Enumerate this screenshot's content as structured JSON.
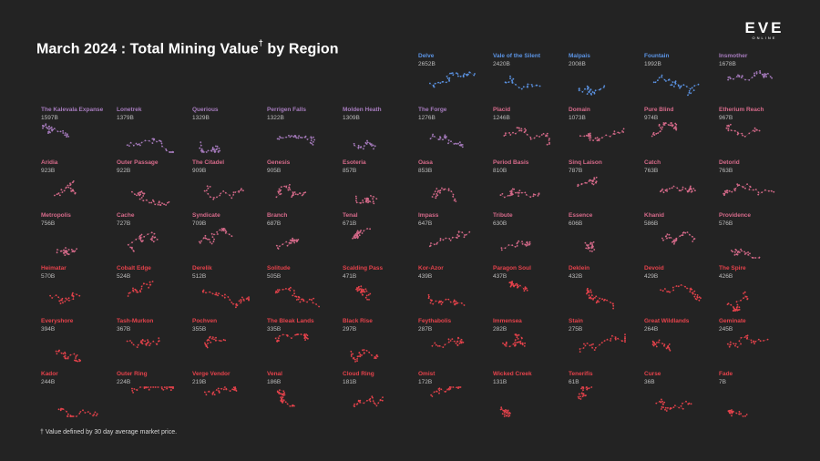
{
  "title": "March 2024 : Total Mining Value",
  "title_mark": "†",
  "title_suffix": "by Region",
  "logo": {
    "main": "EVE",
    "sub": "ONLINE"
  },
  "footnote": "† Value defined by 30 day average market price.",
  "colors": {
    "background": "#232323",
    "tier_blue": "#5b93e3",
    "tier_purple": "#a67bbd",
    "tier_pink": "#d66a8a",
    "tier_red": "#e5424b",
    "value_text": "#bdbdbd"
  },
  "chart_data": {
    "type": "small-multiples",
    "title": "March 2024 : Total Mining Value† by Region",
    "unit": "B",
    "regions": [
      {
        "name": "Delve",
        "value": "2652B",
        "tier": "blue"
      },
      {
        "name": "Vale of the Silent",
        "value": "2420B",
        "tier": "blue"
      },
      {
        "name": "Malpais",
        "value": "2008B",
        "tier": "blue"
      },
      {
        "name": "Fountain",
        "value": "1992B",
        "tier": "blue"
      },
      {
        "name": "Insmother",
        "value": "1678B",
        "tier": "purple"
      },
      {
        "name": "The Kalevala Expanse",
        "value": "1597B",
        "tier": "purple"
      },
      {
        "name": "Lonetrek",
        "value": "1379B",
        "tier": "purple"
      },
      {
        "name": "Querious",
        "value": "1329B",
        "tier": "purple"
      },
      {
        "name": "Perrigen Falls",
        "value": "1322B",
        "tier": "purple"
      },
      {
        "name": "Molden Heath",
        "value": "1309B",
        "tier": "purple"
      },
      {
        "name": "The Forge",
        "value": "1276B",
        "tier": "purple"
      },
      {
        "name": "Placid",
        "value": "1246B",
        "tier": "pink"
      },
      {
        "name": "Domain",
        "value": "1073B",
        "tier": "pink"
      },
      {
        "name": "Pure Blind",
        "value": "974B",
        "tier": "pink"
      },
      {
        "name": "Etherium Reach",
        "value": "967B",
        "tier": "pink"
      },
      {
        "name": "Aridia",
        "value": "923B",
        "tier": "pink"
      },
      {
        "name": "Outer Passage",
        "value": "922B",
        "tier": "pink"
      },
      {
        "name": "The Citadel",
        "value": "909B",
        "tier": "pink"
      },
      {
        "name": "Genesis",
        "value": "905B",
        "tier": "pink"
      },
      {
        "name": "Esoteria",
        "value": "857B",
        "tier": "pink"
      },
      {
        "name": "Oasa",
        "value": "853B",
        "tier": "pink"
      },
      {
        "name": "Period Basis",
        "value": "810B",
        "tier": "pink"
      },
      {
        "name": "Sinq Laison",
        "value": "787B",
        "tier": "pink"
      },
      {
        "name": "Catch",
        "value": "763B",
        "tier": "pink"
      },
      {
        "name": "Detorid",
        "value": "763B",
        "tier": "pink"
      },
      {
        "name": "Metropolis",
        "value": "756B",
        "tier": "pink"
      },
      {
        "name": "Cache",
        "value": "727B",
        "tier": "pink"
      },
      {
        "name": "Syndicate",
        "value": "709B",
        "tier": "pink"
      },
      {
        "name": "Branch",
        "value": "687B",
        "tier": "pink"
      },
      {
        "name": "Tenal",
        "value": "671B",
        "tier": "pink"
      },
      {
        "name": "Impass",
        "value": "647B",
        "tier": "pink"
      },
      {
        "name": "Tribute",
        "value": "630B",
        "tier": "pink"
      },
      {
        "name": "Essence",
        "value": "606B",
        "tier": "pink"
      },
      {
        "name": "Khanid",
        "value": "586B",
        "tier": "pink"
      },
      {
        "name": "Providence",
        "value": "576B",
        "tier": "pink"
      },
      {
        "name": "Heimatar",
        "value": "570B",
        "tier": "red"
      },
      {
        "name": "Cobalt Edge",
        "value": "524B",
        "tier": "red"
      },
      {
        "name": "Derelik",
        "value": "512B",
        "tier": "red"
      },
      {
        "name": "Solitude",
        "value": "505B",
        "tier": "red"
      },
      {
        "name": "Scalding Pass",
        "value": "471B",
        "tier": "red"
      },
      {
        "name": "Kor-Azor",
        "value": "439B",
        "tier": "red"
      },
      {
        "name": "Paragon Soul",
        "value": "437B",
        "tier": "red"
      },
      {
        "name": "Deklein",
        "value": "432B",
        "tier": "red"
      },
      {
        "name": "Devoid",
        "value": "429B",
        "tier": "red"
      },
      {
        "name": "The Spire",
        "value": "426B",
        "tier": "red"
      },
      {
        "name": "Everyshore",
        "value": "394B",
        "tier": "red"
      },
      {
        "name": "Tash-Murkon",
        "value": "367B",
        "tier": "red"
      },
      {
        "name": "Pochven",
        "value": "355B",
        "tier": "red"
      },
      {
        "name": "The Bleak Lands",
        "value": "335B",
        "tier": "red"
      },
      {
        "name": "Black Rise",
        "value": "297B",
        "tier": "red"
      },
      {
        "name": "Feythabolis",
        "value": "287B",
        "tier": "red"
      },
      {
        "name": "Immensea",
        "value": "282B",
        "tier": "red"
      },
      {
        "name": "Stain",
        "value": "275B",
        "tier": "red"
      },
      {
        "name": "Great Wildlands",
        "value": "264B",
        "tier": "red"
      },
      {
        "name": "Geminate",
        "value": "245B",
        "tier": "red"
      },
      {
        "name": "Kador",
        "value": "244B",
        "tier": "red"
      },
      {
        "name": "Outer Ring",
        "value": "224B",
        "tier": "red"
      },
      {
        "name": "Verge Vendor",
        "value": "219B",
        "tier": "red"
      },
      {
        "name": "Venal",
        "value": "186B",
        "tier": "red"
      },
      {
        "name": "Cloud Ring",
        "value": "181B",
        "tier": "red"
      },
      {
        "name": "Omist",
        "value": "172B",
        "tier": "red"
      },
      {
        "name": "Wicked Creek",
        "value": "131B",
        "tier": "red"
      },
      {
        "name": "Tenerifis",
        "value": "61B",
        "tier": "red"
      },
      {
        "name": "Curse",
        "value": "36B",
        "tier": "red"
      },
      {
        "name": "Fade",
        "value": "7B",
        "tier": "red"
      }
    ]
  }
}
